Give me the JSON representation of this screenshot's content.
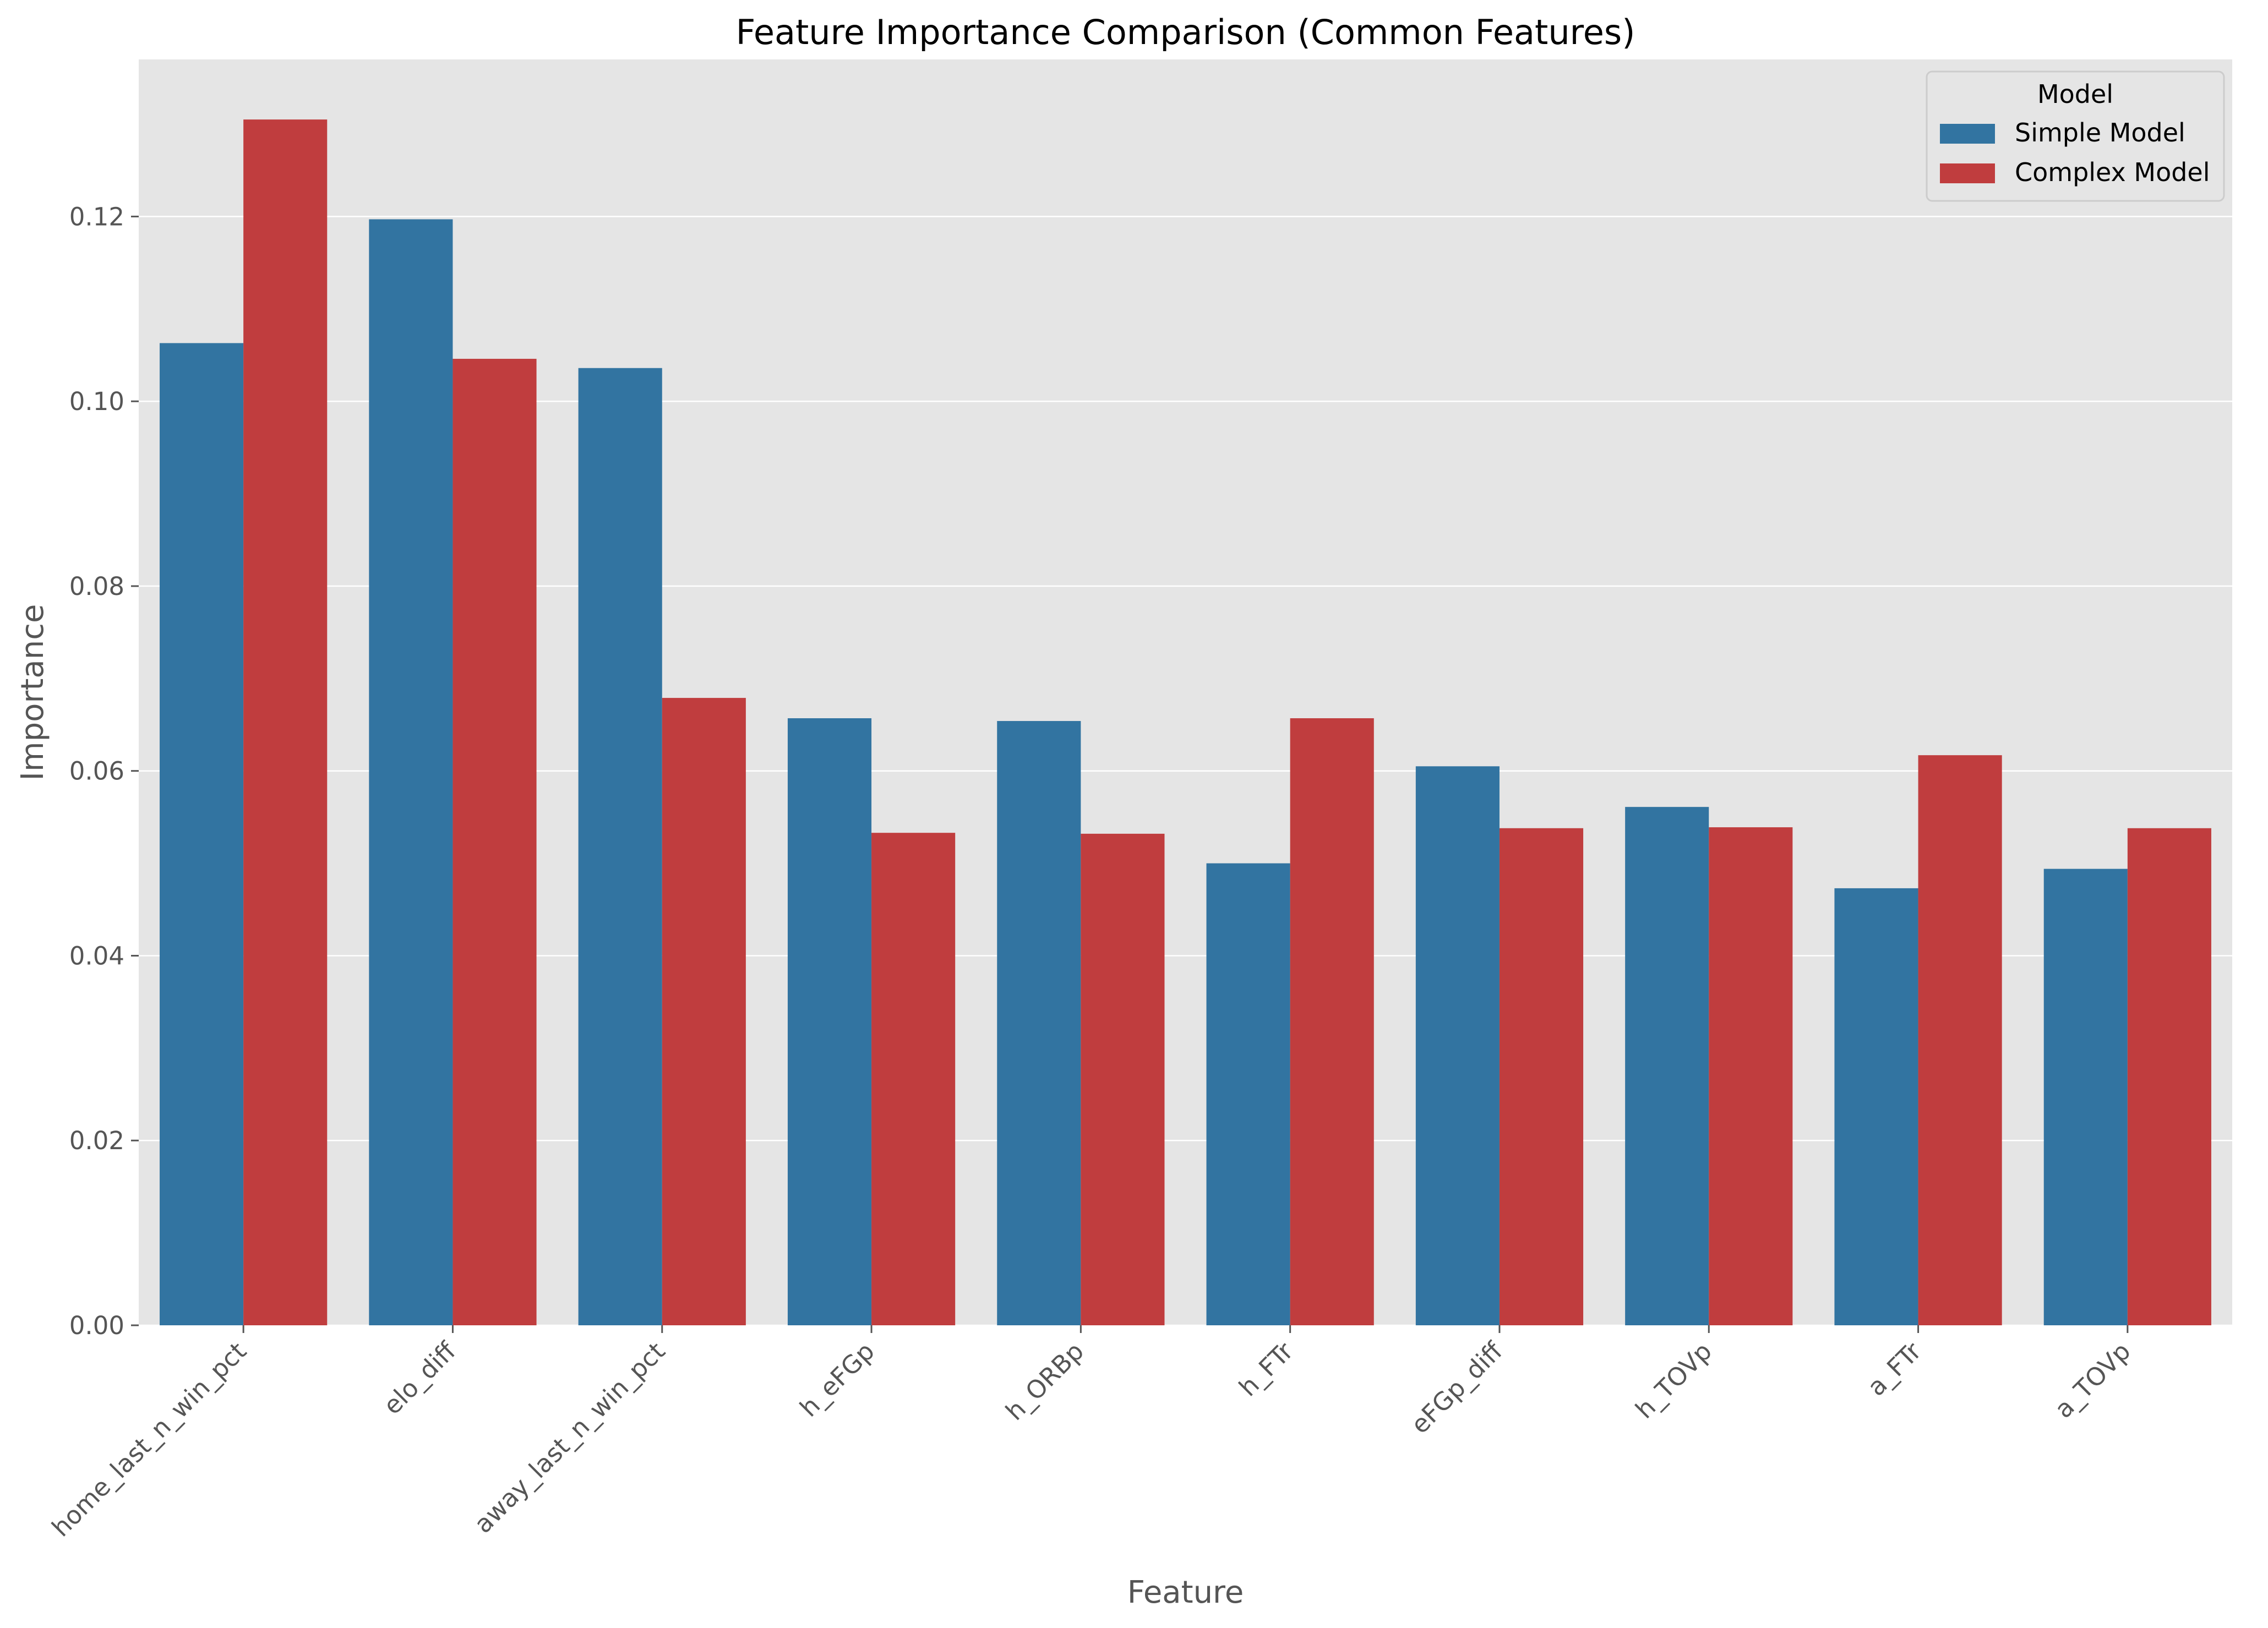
{
  "chart_data": {
    "type": "bar",
    "title": "Feature Importance Comparison (Common Features)",
    "xlabel": "Feature",
    "ylabel": "Importance",
    "ylim": [
      0,
      0.137
    ],
    "yticks": [
      0.0,
      0.02,
      0.04,
      0.06,
      0.08,
      0.1,
      0.12
    ],
    "ytick_labels": [
      "0.00",
      "0.02",
      "0.04",
      "0.06",
      "0.08",
      "0.10",
      "0.12"
    ],
    "grid": true,
    "legend": {
      "title": "Model",
      "placement": "top-right"
    },
    "categories": [
      "home_last_n_win_pct",
      "elo_diff",
      "away_last_n_win_pct",
      "h_eFGp",
      "h_ORBp",
      "h_FTr",
      "eFGp_diff",
      "h_TOVp",
      "a_FTr",
      "a_TOVp"
    ],
    "series": [
      {
        "name": "Simple Model",
        "color": "#3274a1",
        "values": [
          0.1063,
          0.1197,
          0.1036,
          0.0657,
          0.0654,
          0.05,
          0.0605,
          0.0561,
          0.0473,
          0.0494
        ]
      },
      {
        "name": "Complex Model",
        "color": "#c03d3e",
        "values": [
          0.1305,
          0.1046,
          0.0679,
          0.0533,
          0.0532,
          0.0657,
          0.0538,
          0.0539,
          0.0617,
          0.0538
        ]
      }
    ],
    "colors": {
      "plot_background": "#e5e5e5",
      "grid": "#ffffff"
    }
  }
}
